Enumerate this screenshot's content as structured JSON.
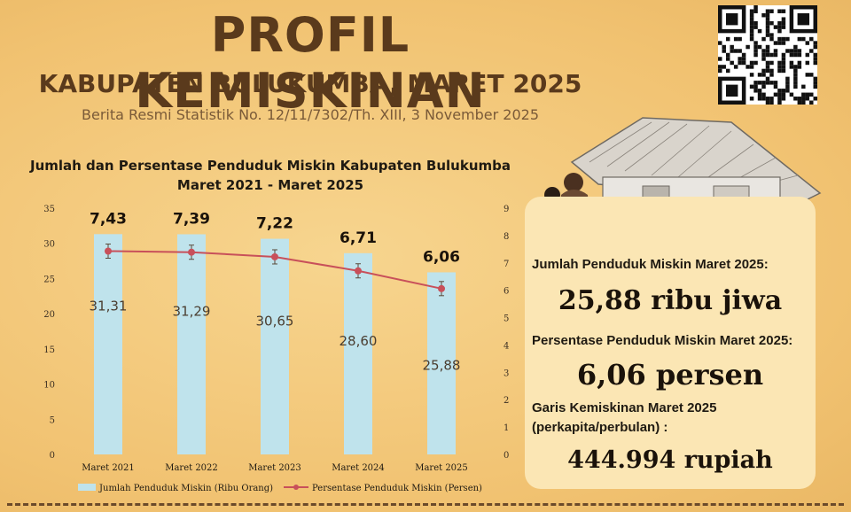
{
  "header": {
    "title": "PROFIL KEMISKINAN",
    "subtitle": "KABUPATEN BULUKUMBA, MARET 2025",
    "brs": "Berita Resmi Statistik No. 12/11/7302/Th. XIII, 3 November 2025"
  },
  "chart_data": {
    "type": "bar",
    "title": "Jumlah dan Persentase Penduduk Miskin Kabupaten Bulukumba",
    "subtitle": "Maret 2021 - Maret 2025",
    "categories": [
      "Maret 2021",
      "Maret 2022",
      "Maret 2023",
      "Maret 2024",
      "Maret 2025"
    ],
    "series": [
      {
        "name": "Jumlah Penduduk Miskin (Ribu Orang)",
        "type": "bar",
        "axis": "left",
        "values": [
          31.31,
          31.29,
          30.65,
          28.6,
          25.88
        ],
        "labels": [
          "31,31",
          "31,29",
          "30,65",
          "28,60",
          "25,88"
        ],
        "color": "#bfe3ec"
      },
      {
        "name": "Persentase Penduduk Miskin (Persen)",
        "type": "line",
        "axis": "right",
        "values": [
          7.43,
          7.39,
          7.22,
          6.71,
          6.06
        ],
        "labels": [
          "7,43",
          "7,39",
          "7,22",
          "6,71",
          "6,06"
        ],
        "color": "#c8505a"
      }
    ],
    "ylim_left": [
      0,
      35
    ],
    "yticks_left": [
      "0",
      "5",
      "10",
      "15",
      "20",
      "25",
      "30",
      "35"
    ],
    "ylim_right": [
      0,
      9
    ],
    "yticks_right": [
      "0",
      "1",
      "2",
      "3",
      "4",
      "5",
      "6",
      "7",
      "8",
      "9"
    ],
    "legend": "bottom"
  },
  "panel": {
    "label1": "Jumlah Penduduk Miskin Maret 2025:",
    "value1": "25,88 ribu jiwa",
    "label2": "Persentase Penduduk Miskin Maret 2025:",
    "value2": "6,06 persen",
    "label3a": "Garis Kemiskinan Maret 2025",
    "label3b": "(perkapita/perbulan) :",
    "value3": "444.994 rupiah"
  },
  "icons": {
    "qr": "qr-code-icon",
    "house": "house-illustration"
  }
}
